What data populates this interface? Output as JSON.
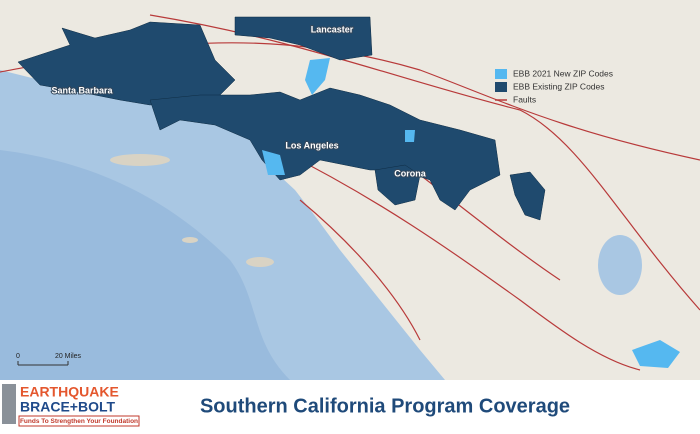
{
  "map": {
    "labels": [
      "Santa Barbara",
      "Lancaster",
      "Los Angeles",
      "Corona"
    ],
    "legend": [
      {
        "label": "EBB 2021 New ZIP Codes",
        "color": "#55b8f0"
      },
      {
        "label": "EBB Existing ZIP Codes",
        "color": "#1f4a6e"
      },
      {
        "label": "Faults",
        "color": "#b83a3a"
      }
    ],
    "scale": {
      "start": "0",
      "end": "20 Miles"
    }
  },
  "footer": {
    "logo": {
      "line1": "EARTHQUAKE",
      "line2": "BRACE+BOLT",
      "tagline": "Funds To Strengthen Your Foundation"
    },
    "title": "Southern California Program Coverage"
  }
}
